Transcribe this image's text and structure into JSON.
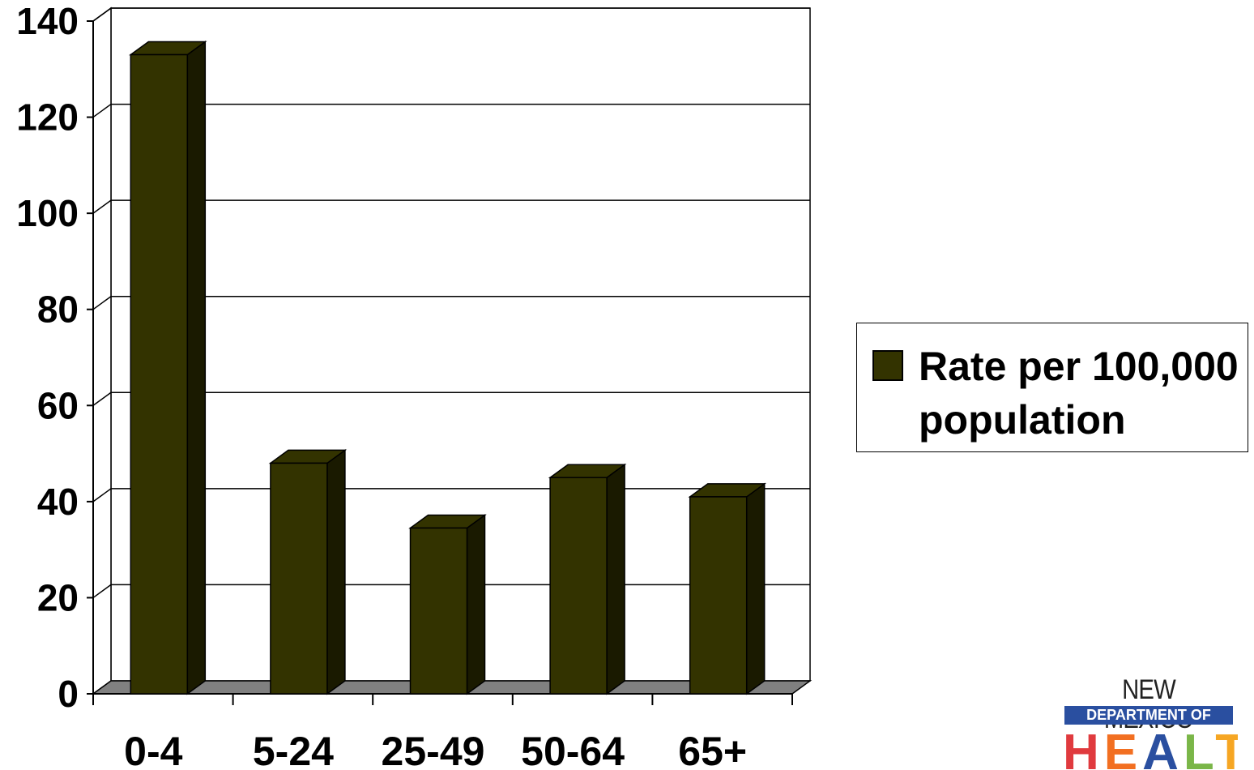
{
  "chart_data": {
    "type": "bar",
    "categories": [
      "0-4",
      "5-24",
      "25-49",
      "50-64",
      "65+"
    ],
    "series": [
      {
        "name": "Rate per 100,000 population",
        "values": [
          133,
          48,
          34.5,
          45,
          41
        ]
      }
    ],
    "ylim": [
      0,
      140
    ],
    "yticks": [
      "0",
      "20",
      "40",
      "60",
      "80",
      "100",
      "120",
      "140"
    ],
    "grid": true,
    "legend_position": "right",
    "bar_color": "#333300",
    "bar_side_color": "#1a1a00",
    "floor_color": "#808080"
  },
  "legend": {
    "label": "Rate per 100,000 population"
  },
  "logo": {
    "line1": "NEW MEXICO",
    "line2": "DEPARTMENT OF",
    "line3": "HEALTH",
    "letter_colors": [
      "#e03a3e",
      "#f26f21",
      "#2a4fa0",
      "#7ab648",
      "#f6a623",
      "#e03a3e"
    ]
  }
}
